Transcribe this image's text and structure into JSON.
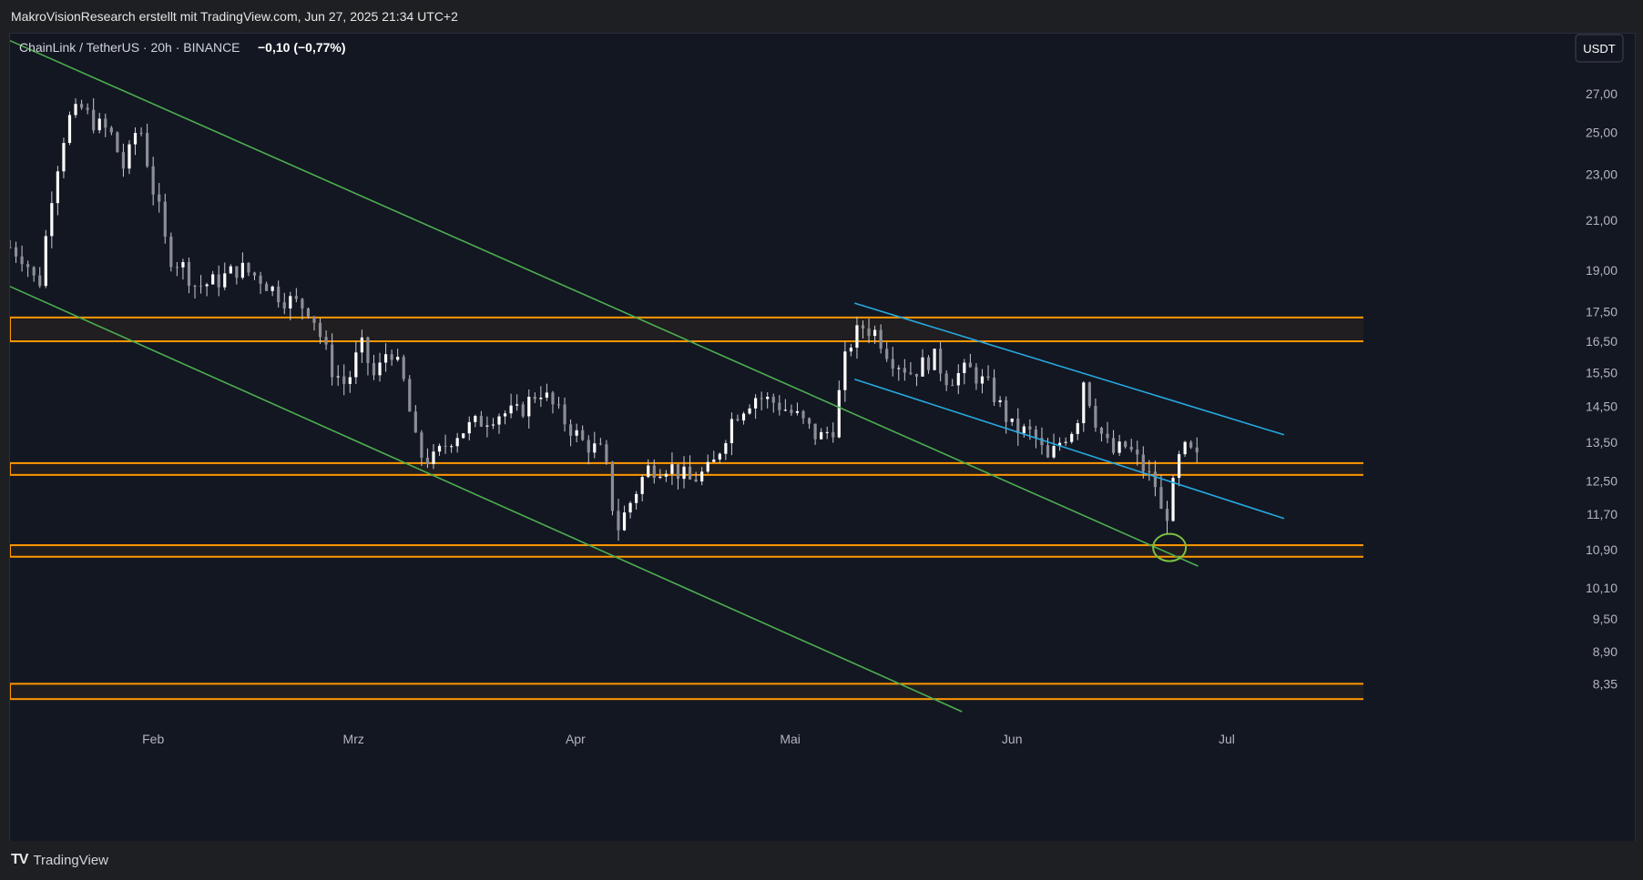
{
  "header": {
    "caption": "MakroVisionResearch erstellt mit TradingView.com, Jun 27, 2025 21:34 UTC+2"
  },
  "legend": {
    "symbol": "ChainLink / TetherUS · 20h · BINANCE",
    "change": "−0,10 (−0,77%)"
  },
  "currency_button": "USDT",
  "footer": {
    "brand": "TradingView",
    "logo_icon": "tradingview-logo-icon"
  },
  "colors": {
    "background": "#131722",
    "candle": "#c8cbd2",
    "channel_green": "#4caf50",
    "channel_blue": "#26a9e0",
    "zone_orange": "#ff9800",
    "marker_green": "#7bc043"
  },
  "chart_data": {
    "type": "candlestick",
    "symbol": "LINKUSDT",
    "y_scale": "log",
    "ylim": [
      7.9,
      30.2
    ],
    "grid": false,
    "y_ticks": [
      "27,00",
      "25,00",
      "23,00",
      "21,00",
      "19,00",
      "17,50",
      "16,50",
      "15,50",
      "14,50",
      "13,50",
      "12,50",
      "11,70",
      "10,90",
      "10,10",
      "9,50",
      "8,90",
      "8,35"
    ],
    "x_ticks": [
      "Feb",
      "Mrz",
      "Apr",
      "Mai",
      "Jun",
      "Jul"
    ],
    "x_tick_dates": [
      "2025-02-01",
      "2025-03-01",
      "2025-04-01",
      "2025-05-01",
      "2025-06-01",
      "2025-07-01"
    ],
    "x_range": [
      "2025-01-12",
      "2025-07-15"
    ],
    "close_path": [
      [
        "2025-01-12",
        19.9
      ],
      [
        "2025-01-14",
        19.5
      ],
      [
        "2025-01-16",
        18.3
      ],
      [
        "2025-01-18",
        22.5
      ],
      [
        "2025-01-20",
        25.6
      ],
      [
        "2025-01-22",
        26.2
      ],
      [
        "2025-01-24",
        25.4
      ],
      [
        "2025-01-26",
        25.0
      ],
      [
        "2025-01-28",
        23.2
      ],
      [
        "2025-01-30",
        25.6
      ],
      [
        "2025-02-01",
        22.3
      ],
      [
        "2025-02-02",
        21.2
      ],
      [
        "2025-02-03",
        19.6
      ],
      [
        "2025-02-05",
        19.2
      ],
      [
        "2025-02-07",
        18.4
      ],
      [
        "2025-02-10",
        18.6
      ],
      [
        "2025-02-13",
        19.1
      ],
      [
        "2025-02-16",
        18.7
      ],
      [
        "2025-02-19",
        18.0
      ],
      [
        "2025-02-23",
        17.6
      ],
      [
        "2025-02-26",
        15.6
      ],
      [
        "2025-02-28",
        15.1
      ],
      [
        "2025-03-02",
        16.4
      ],
      [
        "2025-03-04",
        15.3
      ],
      [
        "2025-03-06",
        16.4
      ],
      [
        "2025-03-08",
        15.2
      ],
      [
        "2025-03-10",
        13.2
      ],
      [
        "2025-03-12",
        13.0
      ],
      [
        "2025-03-15",
        13.7
      ],
      [
        "2025-03-18",
        14.0
      ],
      [
        "2025-03-21",
        14.3
      ],
      [
        "2025-03-24",
        14.3
      ],
      [
        "2025-03-27",
        15.0
      ],
      [
        "2025-03-30",
        14.2
      ],
      [
        "2025-04-02",
        13.5
      ],
      [
        "2025-04-05",
        13.2
      ],
      [
        "2025-04-06",
        12.0
      ],
      [
        "2025-04-07",
        11.4
      ],
      [
        "2025-04-09",
        12.1
      ],
      [
        "2025-04-11",
        12.8
      ],
      [
        "2025-04-14",
        12.9
      ],
      [
        "2025-04-17",
        12.5
      ],
      [
        "2025-04-20",
        12.8
      ],
      [
        "2025-04-23",
        14.2
      ],
      [
        "2025-04-26",
        14.8
      ],
      [
        "2025-04-29",
        14.6
      ],
      [
        "2025-05-02",
        14.2
      ],
      [
        "2025-05-05",
        13.6
      ],
      [
        "2025-05-07",
        13.9
      ],
      [
        "2025-05-09",
        16.3
      ],
      [
        "2025-05-11",
        17.0
      ],
      [
        "2025-05-13",
        16.8
      ],
      [
        "2025-05-15",
        16.0
      ],
      [
        "2025-05-18",
        15.5
      ],
      [
        "2025-05-21",
        16.0
      ],
      [
        "2025-05-23",
        15.3
      ],
      [
        "2025-05-26",
        15.6
      ],
      [
        "2025-05-29",
        15.0
      ],
      [
        "2025-06-01",
        13.9
      ],
      [
        "2025-06-04",
        13.7
      ],
      [
        "2025-06-06",
        13.0
      ],
      [
        "2025-06-08",
        13.6
      ],
      [
        "2025-06-10",
        14.0
      ],
      [
        "2025-06-11",
        15.3
      ],
      [
        "2025-06-13",
        13.9
      ],
      [
        "2025-06-15",
        13.2
      ],
      [
        "2025-06-17",
        13.4
      ],
      [
        "2025-06-19",
        12.9
      ],
      [
        "2025-06-21",
        12.4
      ],
      [
        "2025-06-22",
        11.6
      ],
      [
        "2025-06-23",
        11.8
      ],
      [
        "2025-06-24",
        12.9
      ],
      [
        "2025-06-25",
        13.3
      ],
      [
        "2025-06-26",
        13.2
      ],
      [
        "2025-06-27",
        13.02
      ]
    ],
    "zones": [
      {
        "low": 16.5,
        "high": 17.3
      },
      {
        "low": 12.65,
        "high": 12.95
      },
      {
        "low": 10.75,
        "high": 11.0
      },
      {
        "low": 8.1,
        "high": 8.35
      }
    ],
    "trendlines": [
      {
        "color": "green",
        "from": [
          "2025-01-12",
          30.0
        ],
        "to": [
          "2025-06-27",
          10.55
        ]
      },
      {
        "color": "green",
        "from": [
          "2025-01-12",
          18.4
        ],
        "to": [
          "2025-05-25",
          7.9
        ]
      },
      {
        "color": "blue",
        "from": [
          "2025-05-10",
          17.8
        ],
        "to": [
          "2025-07-09",
          13.7
        ]
      },
      {
        "color": "blue",
        "from": [
          "2025-05-10",
          15.3
        ],
        "to": [
          "2025-07-09",
          11.6
        ]
      }
    ],
    "marker": {
      "date": "2025-06-23",
      "value": 10.95,
      "shape": "circle"
    }
  }
}
